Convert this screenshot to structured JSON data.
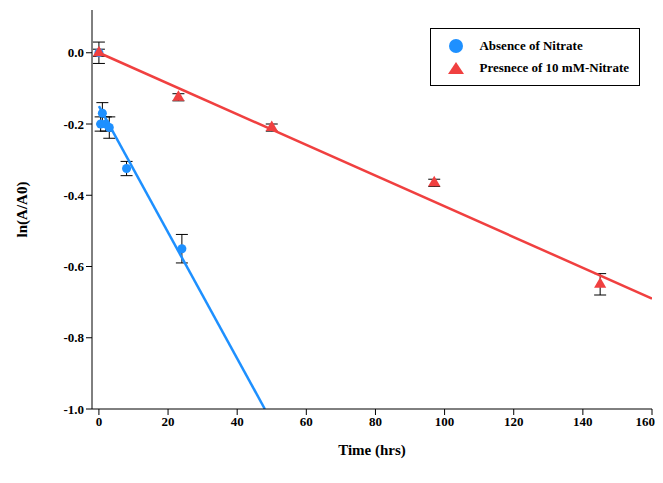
{
  "chart_data": {
    "type": "scatter",
    "x_label": "Time (hrs)",
    "y_label": "ln(A/A0)",
    "xlim": [
      -2,
      160
    ],
    "ylim": [
      -1.0,
      0.12
    ],
    "xticks": [
      0,
      20,
      40,
      60,
      80,
      100,
      120,
      140,
      160
    ],
    "yticks": [
      {
        "value": -1.0,
        "label": "-1.0"
      },
      {
        "value": -0.8,
        "label": "-0.8"
      },
      {
        "value": -0.6,
        "label": "-0.6"
      },
      {
        "value": -0.4,
        "label": "-0.4"
      },
      {
        "value": -0.2,
        "label": "-0.2"
      },
      {
        "value": 0.0,
        "label": "0.0"
      }
    ],
    "legend": "upper right",
    "series": [
      {
        "name": "Absence of Nitrate",
        "type": "scatter",
        "color": "#1e90ff",
        "marker": "circle",
        "x": [
          0,
          0.5,
          1,
          2,
          3,
          8,
          24
        ],
        "values": [
          0.0,
          -0.2,
          -0.17,
          -0.2,
          -0.21,
          -0.325,
          -0.55
        ],
        "errors": [
          0.03,
          0.02,
          0.03,
          0.02,
          0.03,
          0.02,
          0.04
        ]
      },
      {
        "name": "Presnece of 10 mM-Nitrate",
        "type": "scatter",
        "color": "#f04040",
        "marker": "triangle",
        "x": [
          0,
          23,
          50,
          97,
          145
        ],
        "values": [
          0.0,
          -0.125,
          -0.21,
          -0.365,
          -0.65
        ],
        "errors": [
          0.01,
          0.01,
          0.01,
          0.01,
          0.03
        ]
      },
      {
        "type": "line",
        "color": "#1e90ff",
        "line_style": "solid",
        "x": [
          0,
          48
        ],
        "values": [
          -0.15,
          -1.0
        ]
      },
      {
        "type": "line",
        "color": "#f04040",
        "line_style": "solid",
        "x": [
          0,
          160
        ],
        "values": [
          0.0,
          -0.69
        ]
      }
    ]
  }
}
